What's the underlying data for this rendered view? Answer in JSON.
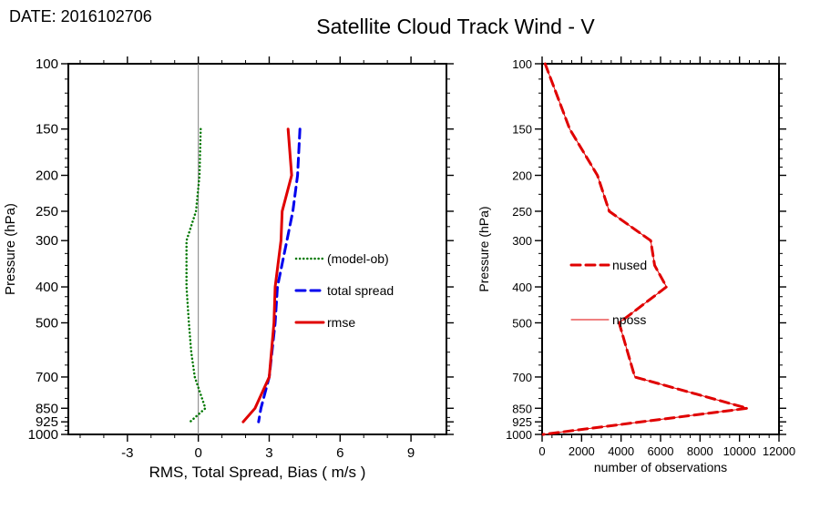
{
  "date_label": "DATE: 2016102706",
  "title": "Satellite Cloud Track Wind - V",
  "chart_data": [
    {
      "type": "line",
      "panel": "left",
      "title": "",
      "xlabel": "RMS, Total Spread, Bias ( m/s )",
      "ylabel": "Pressure (hPa)",
      "xlim": [
        -5.5,
        10.5
      ],
      "xticks": [
        -3,
        0,
        3,
        6,
        9
      ],
      "xminor_step": 1,
      "ylim": [
        100,
        1000
      ],
      "yscale": "log",
      "y_inverted": true,
      "yticks": [
        100,
        150,
        200,
        250,
        300,
        400,
        500,
        700,
        850,
        925,
        1000
      ],
      "grid": false,
      "zero_line": true,
      "zero_line_color": "#808080",
      "legend_position": "inside-right-middle",
      "series": [
        {
          "name": "(model-ob)",
          "color": "#007700",
          "style": "dotted",
          "width": 2.5,
          "pressure": [
            150,
            200,
            250,
            300,
            400,
            500,
            600,
            700,
            850,
            925
          ],
          "values": [
            0.1,
            0.05,
            -0.1,
            -0.5,
            -0.5,
            -0.4,
            -0.3,
            -0.15,
            0.3,
            -0.35
          ]
        },
        {
          "name": "total spread",
          "color": "#0000ee",
          "style": "dashed",
          "width": 3,
          "pressure": [
            150,
            200,
            250,
            300,
            400,
            500,
            700,
            850,
            925
          ],
          "values": [
            4.3,
            4.2,
            4.0,
            3.75,
            3.35,
            3.25,
            3.0,
            2.65,
            2.55
          ]
        },
        {
          "name": "rmse",
          "color": "#e00000",
          "style": "solid",
          "width": 3,
          "pressure": [
            150,
            200,
            250,
            300,
            400,
            500,
            700,
            850,
            925
          ],
          "values": [
            3.8,
            3.95,
            3.55,
            3.5,
            3.25,
            3.2,
            3.0,
            2.4,
            1.9
          ]
        }
      ]
    },
    {
      "type": "line",
      "panel": "right",
      "title": "",
      "xlabel": "number of observations",
      "ylabel": "Pressure (hPa)",
      "xlim": [
        0,
        12000
      ],
      "xticks": [
        0,
        2000,
        4000,
        6000,
        8000,
        10000,
        12000
      ],
      "xminor_step": 500,
      "ylim": [
        100,
        1000
      ],
      "yscale": "log",
      "y_inverted": true,
      "yticks": [
        100,
        150,
        200,
        250,
        300,
        400,
        500,
        700,
        850,
        925,
        1000
      ],
      "grid": false,
      "zero_line": false,
      "legend_position": "inside-left-middle",
      "series": [
        {
          "name": "nposs",
          "color": "#e00000",
          "style": "solid",
          "width": 1,
          "pressure": [
            100,
            150,
            200,
            250,
            300,
            350,
            400,
            500,
            700,
            850,
            1000
          ],
          "values": [
            150,
            1400,
            2800,
            3400,
            5500,
            5700,
            6300,
            3900,
            4700,
            10400,
            50
          ]
        },
        {
          "name": "nused",
          "color": "#e00000",
          "style": "dashed",
          "width": 3,
          "pressure": [
            100,
            150,
            200,
            250,
            300,
            350,
            400,
            500,
            700,
            850,
            1000
          ],
          "values": [
            150,
            1400,
            2800,
            3400,
            5500,
            5700,
            6300,
            3900,
            4700,
            10400,
            50
          ]
        }
      ]
    }
  ]
}
